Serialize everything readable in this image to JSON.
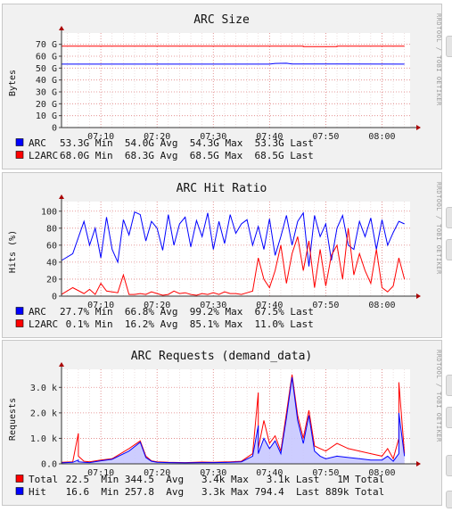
{
  "watermark": "RRDTOOL / TOBI OETIKER",
  "chart_data": [
    {
      "type": "line",
      "title": "ARC Size",
      "ylabel": "Bytes",
      "x_range": [
        "07:03",
        "08:05"
      ],
      "x_ticks": [
        "07:10",
        "07:20",
        "07:30",
        "07:40",
        "07:50",
        "08:00"
      ],
      "ylim": [
        0,
        75
      ],
      "y_ticks": [
        {
          "value": 0,
          "label": "0"
        },
        {
          "value": 10,
          "label": "10 G"
        },
        {
          "value": 20,
          "label": "20 G"
        },
        {
          "value": 30,
          "label": "30 G"
        },
        {
          "value": 40,
          "label": "40 G"
        },
        {
          "value": 50,
          "label": "50 G"
        },
        {
          "value": 60,
          "label": "60 G"
        },
        {
          "value": 70,
          "label": "70 G"
        }
      ],
      "series": [
        {
          "name": "ARC",
          "color": "#0000ff",
          "fill": false,
          "x": [
            "07:03",
            "07:40",
            "07:41",
            "07:43",
            "07:44",
            "08:04"
          ],
          "y": [
            53.3,
            53.3,
            53.9,
            54.1,
            53.5,
            53.3
          ]
        },
        {
          "name": "L2ARC",
          "color": "#ff0000",
          "fill": false,
          "x": [
            "07:03",
            "07:46",
            "07:46",
            "07:52",
            "07:52",
            "08:04"
          ],
          "y": [
            68.5,
            68.5,
            68.0,
            68.0,
            68.5,
            68.5
          ]
        }
      ],
      "legend": [
        {
          "name": "ARC",
          "color": "#0000ff",
          "text": "  53.3G Min  54.0G Avg  54.3G Max  53.3G Last"
        },
        {
          "name": "L2ARC",
          "color": "#ff0000",
          "text": "68.0G Min  68.3G Avg  68.5G Max  68.5G Last"
        }
      ]
    },
    {
      "type": "line",
      "title": "ARC Hit Ratio",
      "ylabel": "Hits (%)",
      "x_range": [
        "07:03",
        "08:05"
      ],
      "x_ticks": [
        "07:10",
        "07:20",
        "07:30",
        "07:40",
        "07:50",
        "08:00"
      ],
      "ylim": [
        0,
        105
      ],
      "y_ticks": [
        {
          "value": 0,
          "label": "0"
        },
        {
          "value": 20,
          "label": "20"
        },
        {
          "value": 40,
          "label": "40"
        },
        {
          "value": 60,
          "label": "60"
        },
        {
          "value": 80,
          "label": "80"
        },
        {
          "value": 100,
          "label": "100"
        }
      ],
      "series": [
        {
          "name": "ARC",
          "color": "#0000ff",
          "fill": false,
          "x": [
            "07:03",
            "07:05",
            "07:07",
            "07:08",
            "07:09",
            "07:10",
            "07:11",
            "07:12",
            "07:13",
            "07:14",
            "07:15",
            "07:16",
            "07:17",
            "07:18",
            "07:19",
            "07:20",
            "07:21",
            "07:22",
            "07:23",
            "07:24",
            "07:25",
            "07:26",
            "07:27",
            "07:28",
            "07:29",
            "07:30",
            "07:31",
            "07:32",
            "07:33",
            "07:34",
            "07:35",
            "07:36",
            "07:37",
            "07:38",
            "07:39",
            "07:40",
            "07:41",
            "07:42",
            "07:43",
            "07:44",
            "07:45",
            "07:46",
            "07:47",
            "07:48",
            "07:49",
            "07:50",
            "07:51",
            "07:52",
            "07:53",
            "07:54",
            "07:55",
            "07:56",
            "07:57",
            "07:58",
            "07:59",
            "08:00",
            "08:01",
            "08:02",
            "08:03",
            "08:04"
          ],
          "y": [
            42,
            50,
            88,
            60,
            80,
            45,
            93,
            55,
            40,
            90,
            72,
            99,
            96,
            65,
            88,
            80,
            54,
            96,
            60,
            85,
            93,
            58,
            89,
            70,
            98,
            55,
            88,
            62,
            96,
            74,
            85,
            90,
            60,
            82,
            55,
            91,
            48,
            70,
            95,
            60,
            88,
            98,
            35,
            95,
            70,
            85,
            42,
            80,
            95,
            60,
            55,
            88,
            70,
            92,
            55,
            90,
            60,
            75,
            88,
            85
          ]
        },
        {
          "name": "L2ARC",
          "color": "#ff0000",
          "fill": false,
          "x": [
            "07:03",
            "07:05",
            "07:07",
            "07:08",
            "07:09",
            "07:10",
            "07:11",
            "07:12",
            "07:13",
            "07:14",
            "07:15",
            "07:16",
            "07:17",
            "07:18",
            "07:19",
            "07:20",
            "07:21",
            "07:22",
            "07:23",
            "07:24",
            "07:25",
            "07:26",
            "07:27",
            "07:28",
            "07:29",
            "07:30",
            "07:31",
            "07:32",
            "07:33",
            "07:34",
            "07:35",
            "07:36",
            "07:37",
            "07:38",
            "07:39",
            "07:40",
            "07:41",
            "07:42",
            "07:43",
            "07:44",
            "07:45",
            "07:46",
            "07:47",
            "07:48",
            "07:49",
            "07:50",
            "07:51",
            "07:52",
            "07:53",
            "07:54",
            "07:55",
            "07:56",
            "07:57",
            "07:58",
            "07:59",
            "08:00",
            "08:01",
            "08:02",
            "08:03",
            "08:04"
          ],
          "y": [
            2,
            10,
            3,
            8,
            2,
            15,
            6,
            5,
            4,
            25,
            2,
            2,
            3,
            2,
            5,
            3,
            1,
            2,
            6,
            3,
            4,
            2,
            1,
            3,
            2,
            4,
            2,
            5,
            3,
            3,
            2,
            4,
            6,
            45,
            20,
            10,
            30,
            60,
            15,
            50,
            70,
            30,
            65,
            10,
            55,
            12,
            48,
            60,
            20,
            80,
            25,
            50,
            30,
            15,
            55,
            10,
            5,
            12,
            45,
            20
          ]
        }
      ],
      "legend": [
        {
          "name": "ARC",
          "color": "#0000ff",
          "text": "  27.7% Min  66.8% Avg  99.2% Max  67.5% Last"
        },
        {
          "name": "L2ARC",
          "color": "#ff0000",
          "text": " 0.1% Min  16.2% Avg  85.1% Max  11.0% Last"
        }
      ]
    },
    {
      "type": "area",
      "title": "ARC Requests (demand_data)",
      "ylabel": "Requests",
      "x_range": [
        "07:03",
        "08:05"
      ],
      "x_ticks": [
        "07:10",
        "07:20",
        "07:30",
        "07:40",
        "07:50",
        "08:00"
      ],
      "ylim": [
        0,
        3500
      ],
      "y_ticks": [
        {
          "value": 0,
          "label": "0.0"
        },
        {
          "value": 1000,
          "label": "1.0 k"
        },
        {
          "value": 2000,
          "label": "2.0 k"
        },
        {
          "value": 3000,
          "label": "3.0 k"
        }
      ],
      "series": [
        {
          "name": "Total",
          "color": "#ff0000",
          "fill": false,
          "x": [
            "07:03",
            "07:05",
            "07:06",
            "07:06",
            "07:07",
            "07:08",
            "07:10",
            "07:12",
            "07:15",
            "07:17",
            "07:18",
            "07:19",
            "07:20",
            "07:22",
            "07:25",
            "07:28",
            "07:30",
            "07:33",
            "07:35",
            "07:37",
            "07:38",
            "07:38",
            "07:39",
            "07:40",
            "07:41",
            "07:42",
            "07:43",
            "07:44",
            "07:45",
            "07:46",
            "07:47",
            "07:48",
            "07:49",
            "07:50",
            "07:52",
            "07:54",
            "07:56",
            "07:58",
            "08:00",
            "08:01",
            "08:02",
            "08:03",
            "08:03",
            "08:04"
          ],
          "y": [
            60,
            80,
            1200,
            300,
            100,
            80,
            150,
            200,
            600,
            900,
            300,
            120,
            80,
            60,
            50,
            70,
            60,
            80,
            100,
            400,
            2800,
            600,
            1700,
            800,
            1100,
            500,
            2000,
            3500,
            1900,
            1000,
            2100,
            700,
            600,
            500,
            800,
            600,
            500,
            400,
            300,
            600,
            200,
            1000,
            3200,
            400
          ]
        },
        {
          "name": "Hit",
          "color": "#0000ff",
          "fill": true,
          "fill_color": "#c8c8ff",
          "x": [
            "07:03",
            "07:05",
            "07:06",
            "07:06",
            "07:07",
            "07:08",
            "07:10",
            "07:12",
            "07:15",
            "07:17",
            "07:18",
            "07:19",
            "07:20",
            "07:22",
            "07:25",
            "07:28",
            "07:30",
            "07:33",
            "07:35",
            "07:37",
            "07:38",
            "07:38",
            "07:39",
            "07:40",
            "07:41",
            "07:42",
            "07:43",
            "07:44",
            "07:45",
            "07:46",
            "07:47",
            "07:48",
            "07:49",
            "07:50",
            "07:52",
            "07:54",
            "07:56",
            "07:58",
            "08:00",
            "08:01",
            "08:02",
            "08:03",
            "08:03",
            "08:04"
          ],
          "y": [
            40,
            60,
            150,
            80,
            60,
            50,
            120,
            180,
            500,
            850,
            250,
            100,
            60,
            50,
            40,
            50,
            50,
            60,
            80,
            300,
            1500,
            400,
            1000,
            600,
            900,
            400,
            1800,
            3400,
            1700,
            800,
            1900,
            500,
            300,
            200,
            300,
            250,
            200,
            150,
            150,
            300,
            100,
            400,
            2000,
            300
          ]
        }
      ],
      "legend": [
        {
          "name": "Total",
          "color": "#ff0000",
          "text": " 22.5  Min 344.5  Avg   3.4k Max   3.1k Last   1M Total"
        },
        {
          "name": "Hit",
          "color": "#0000ff",
          "text": "   16.6  Min 257.8  Avg   3.3k Max 794.4  Last 889k Total"
        }
      ]
    }
  ]
}
